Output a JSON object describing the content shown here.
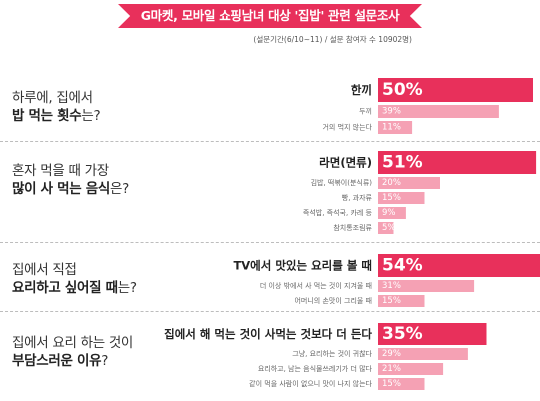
{
  "header": {
    "title": "G마켓, 모바일 쇼핑남녀 대상 '집밥' 관련 설문조사",
    "meta": "(설문기간(6/10~11) / 설문 참여자 수 10902명)"
  },
  "colors": {
    "accent": "#e8305b",
    "secondary": "#f5a1b4",
    "percent_secondary": "#aaaaaa"
  },
  "questions": [
    {
      "line1": "하루에, 집에서",
      "line2_bold": "밥 먹는 횟수",
      "line2_rest": "는?",
      "answers": [
        {
          "label": "한끼",
          "value": 50,
          "pct": "50%"
        },
        {
          "label": "두끼",
          "value": 39,
          "pct": "39%"
        },
        {
          "label": "거의 먹지 않는다",
          "value": 11,
          "pct": "11%"
        }
      ]
    },
    {
      "line1": "혼자 먹을 때 가장",
      "line2_bold": "많이 사 먹는 음식",
      "line2_rest": "은?",
      "answers": [
        {
          "label": "라면(면류)",
          "value": 51,
          "pct": "51%"
        },
        {
          "label": "김밥, 떡볶이(분식류)",
          "value": 20,
          "pct": "20%"
        },
        {
          "label": "빵, 과자류",
          "value": 15,
          "pct": "15%"
        },
        {
          "label": "즉석밥, 즉석국, 카레 등",
          "value": 9,
          "pct": "9%"
        },
        {
          "label": "참치통조림류",
          "value": 5,
          "pct": "5%"
        }
      ]
    },
    {
      "line1": "집에서 직접",
      "line2_bold": "요리하고 싶어질 때",
      "line2_rest": "는?",
      "answers": [
        {
          "label": "TV에서 맛있는 요리를 볼 때",
          "value": 54,
          "pct": "54%"
        },
        {
          "label": "더 이상 밖에서 사 먹는 것이 지겨울 때",
          "value": 31,
          "pct": "31%"
        },
        {
          "label": "어머니의 손맛이 그리울 때",
          "value": 15,
          "pct": "15%"
        }
      ]
    },
    {
      "line1": "집에서 요리 하는 것이",
      "line2_bold": "부담스러운 이유",
      "line2_rest": "?",
      "answers": [
        {
          "label": "집에서 해 먹는 것이 사먹는 것보다 더 든다",
          "value": 35,
          "pct": "35%"
        },
        {
          "label": "그냥, 요리하는 것이 귀찮다",
          "value": 29,
          "pct": "29%"
        },
        {
          "label": "요리하고, 남는 음식물쓰레기가 더 많다",
          "value": 21,
          "pct": "21%"
        },
        {
          "label": "같이 먹을 사람이 없으니 맛이 나지 않는다",
          "value": 15,
          "pct": "15%"
        }
      ]
    }
  ],
  "chart_data": {
    "type": "bar",
    "orientation": "horizontal",
    "title": "G마켓, 모바일 쇼핑남녀 대상 '집밥' 관련 설문조사",
    "groups": [
      {
        "question": "하루에, 집에서 밥 먹는 횟수는?",
        "categories": [
          "한끼",
          "두끼",
          "거의 먹지 않는다"
        ],
        "values": [
          50,
          39,
          11
        ]
      },
      {
        "question": "혼자 먹을 때 가장 많이 사 먹는 음식은?",
        "categories": [
          "라면(면류)",
          "김밥, 떡볶이(분식류)",
          "빵, 과자류",
          "즉석밥, 즉석국, 카레 등",
          "참치통조림류"
        ],
        "values": [
          51,
          20,
          15,
          9,
          5
        ]
      },
      {
        "question": "집에서 직접 요리하고 싶어질 때는?",
        "categories": [
          "TV에서 맛있는 요리를 볼 때",
          "더 이상 밖에서 사 먹는 것이 지겨울 때",
          "어머니의 손맛이 그리울 때"
        ],
        "values": [
          54,
          31,
          15
        ]
      },
      {
        "question": "집에서 요리 하는 것이 부담스러운 이유?",
        "categories": [
          "집에서 해 먹는 것이 사먹는 것보다 더 든다",
          "그냥, 요리하는 것이 귀찮다",
          "요리하고, 남는 음식물쓰레기가 더 많다",
          "같이 먹을 사람이 없으니 맛이 나지 않는다"
        ],
        "values": [
          35,
          29,
          21,
          15
        ]
      }
    ],
    "unit": "%",
    "grid": false,
    "legend": "none"
  }
}
